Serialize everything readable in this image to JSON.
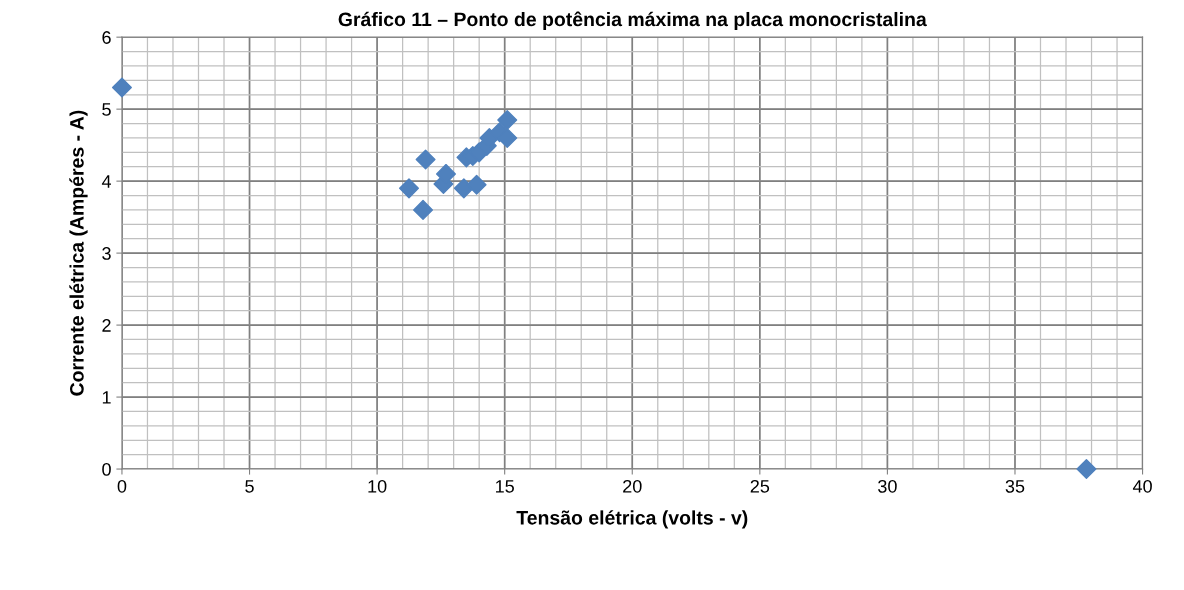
{
  "chart_data": {
    "type": "scatter",
    "title": "Gráfico 11 – Ponto de potência máxima na placa monocristalina",
    "xlabel": "Tensão elétrica (volts - v)",
    "ylabel": "Corrente elétrica (Ampéres - A)",
    "x": [
      0,
      37.8,
      11.25,
      11.8,
      11.9,
      12.6,
      12.7,
      13.4,
      13.9,
      13.5,
      13.75,
      14.0,
      14.3,
      14.4,
      14.8,
      15.1,
      15.1
    ],
    "series": [
      {
        "color": "#4f81bd",
        "values": [
          5.3,
          0,
          3.9,
          3.6,
          4.3,
          3.96,
          4.1,
          3.9,
          3.95,
          4.33,
          4.35,
          4.4,
          4.49,
          4.6,
          4.68,
          4.6,
          4.85
        ]
      }
    ],
    "marker": "diamond",
    "grid": true,
    "xlim": [
      0,
      40
    ],
    "xticks": [
      0,
      5,
      10,
      15,
      20,
      25,
      30,
      35,
      40
    ],
    "ylim": [
      0,
      6
    ],
    "yticks": [
      0,
      1,
      2,
      3,
      4,
      5,
      6
    ]
  }
}
